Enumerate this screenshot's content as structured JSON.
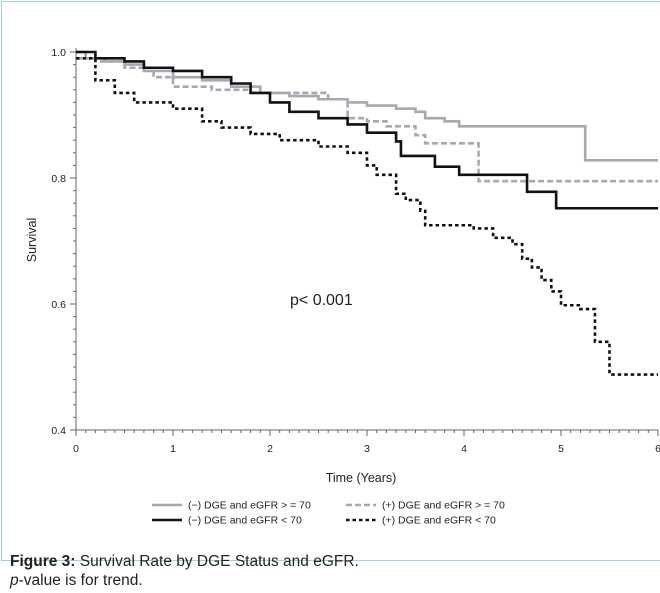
{
  "chart_data": {
    "type": "line",
    "step": true,
    "xlabel": "Time (Years)",
    "ylabel": "Survival",
    "xlim": [
      0,
      6
    ],
    "ylim": [
      0.4,
      1.0
    ],
    "x_ticks": [
      "0",
      "1",
      "2",
      "3",
      "4",
      "5",
      "6"
    ],
    "y_ticks": [
      "0.4",
      "0.6",
      "0.8",
      "1.0"
    ],
    "annotation": "p< 0.001",
    "legend_position": "bottom",
    "series": [
      {
        "name": "(−) DGE and eGFR > = 70",
        "color": "#a8a8b2",
        "dash": "solid",
        "points": [
          [
            0,
            1.0
          ],
          [
            0.1,
            0.99
          ],
          [
            0.3,
            0.985
          ],
          [
            0.5,
            0.98
          ],
          [
            0.7,
            0.97
          ],
          [
            1.0,
            0.96
          ],
          [
            1.3,
            0.955
          ],
          [
            1.6,
            0.945
          ],
          [
            1.9,
            0.935
          ],
          [
            2.2,
            0.93
          ],
          [
            2.5,
            0.925
          ],
          [
            2.8,
            0.92
          ],
          [
            3.0,
            0.915
          ],
          [
            3.3,
            0.91
          ],
          [
            3.5,
            0.905
          ],
          [
            3.6,
            0.895
          ],
          [
            3.8,
            0.89
          ],
          [
            3.95,
            0.882
          ],
          [
            5.25,
            0.828
          ],
          [
            6.0,
            0.828
          ]
        ]
      },
      {
        "name": "(+) DGE and eGFR > = 70",
        "color": "#a8a8b2",
        "dash": "dashed",
        "points": [
          [
            0,
            0.99
          ],
          [
            0.2,
            0.985
          ],
          [
            0.5,
            0.975
          ],
          [
            0.8,
            0.96
          ],
          [
            1.0,
            0.945
          ],
          [
            1.4,
            0.94
          ],
          [
            1.8,
            0.935
          ],
          [
            2.2,
            0.935
          ],
          [
            2.6,
            0.925
          ],
          [
            2.8,
            0.895
          ],
          [
            3.0,
            0.89
          ],
          [
            3.2,
            0.882
          ],
          [
            3.5,
            0.868
          ],
          [
            3.6,
            0.855
          ],
          [
            3.7,
            0.855
          ],
          [
            4.15,
            0.795
          ],
          [
            6.0,
            0.795
          ]
        ]
      },
      {
        "name": "(−) DGE and eGFR < 70",
        "color": "#111111",
        "dash": "solid",
        "points": [
          [
            0,
            1.0
          ],
          [
            0.2,
            0.99
          ],
          [
            0.5,
            0.985
          ],
          [
            0.7,
            0.975
          ],
          [
            1.0,
            0.97
          ],
          [
            1.3,
            0.96
          ],
          [
            1.6,
            0.95
          ],
          [
            1.8,
            0.935
          ],
          [
            2.0,
            0.92
          ],
          [
            2.2,
            0.905
          ],
          [
            2.5,
            0.895
          ],
          [
            2.8,
            0.885
          ],
          [
            3.0,
            0.872
          ],
          [
            3.3,
            0.858
          ],
          [
            3.35,
            0.835
          ],
          [
            3.7,
            0.818
          ],
          [
            3.95,
            0.805
          ],
          [
            4.65,
            0.778
          ],
          [
            4.95,
            0.752
          ],
          [
            6.0,
            0.752
          ]
        ]
      },
      {
        "name": "(+) DGE and eGFR < 70",
        "color": "#111111",
        "dash": "dotted",
        "points": [
          [
            0,
            0.99
          ],
          [
            0.2,
            0.955
          ],
          [
            0.4,
            0.935
          ],
          [
            0.6,
            0.92
          ],
          [
            1.0,
            0.91
          ],
          [
            1.3,
            0.89
          ],
          [
            1.5,
            0.88
          ],
          [
            1.8,
            0.87
          ],
          [
            2.1,
            0.86
          ],
          [
            2.5,
            0.85
          ],
          [
            2.8,
            0.84
          ],
          [
            3.0,
            0.82
          ],
          [
            3.1,
            0.805
          ],
          [
            3.3,
            0.775
          ],
          [
            3.4,
            0.765
          ],
          [
            3.55,
            0.748
          ],
          [
            3.6,
            0.725
          ],
          [
            4.1,
            0.72
          ],
          [
            4.3,
            0.705
          ],
          [
            4.5,
            0.695
          ],
          [
            4.6,
            0.672
          ],
          [
            4.7,
            0.658
          ],
          [
            4.8,
            0.638
          ],
          [
            4.9,
            0.62
          ],
          [
            5.0,
            0.598
          ],
          [
            5.2,
            0.592
          ],
          [
            5.35,
            0.54
          ],
          [
            5.5,
            0.488
          ],
          [
            6.0,
            0.488
          ]
        ]
      }
    ]
  },
  "caption": {
    "figure_label": "Figure 3:",
    "figure_text": " Survival Rate by DGE Status and eGFR.",
    "pvalue_italic": "p",
    "pvalue_text": "-value is for trend."
  }
}
